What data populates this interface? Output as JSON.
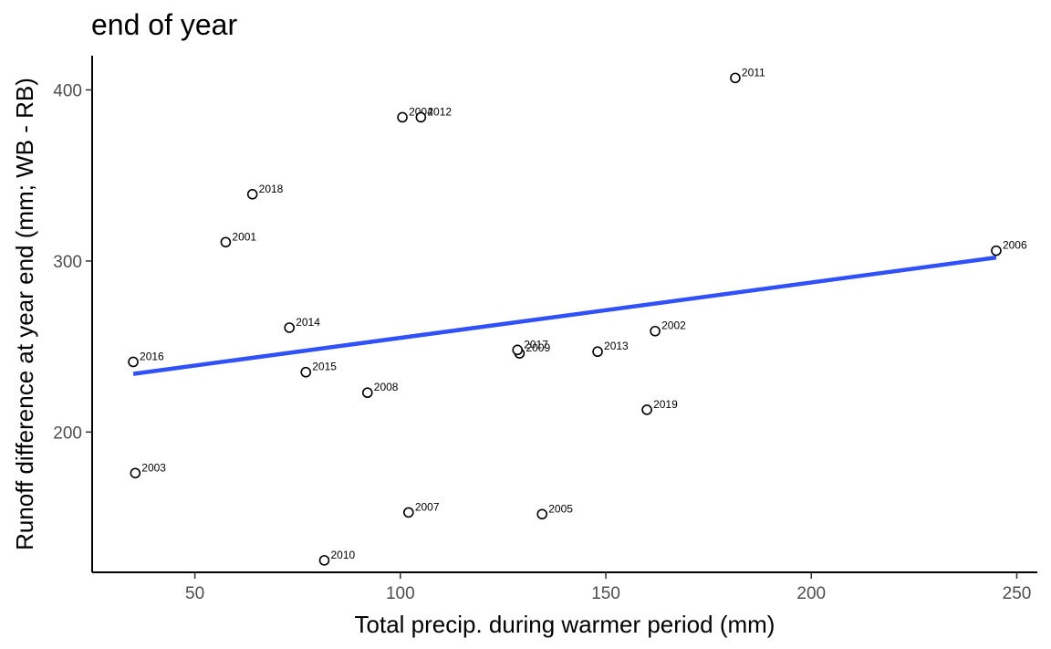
{
  "chart_data": {
    "type": "scatter",
    "title": "end of year",
    "xlabel": "Total precip. during warmer period (mm)",
    "ylabel": "Runoff difference at year end (mm; WB - RB)",
    "xlim": [
      25,
      255
    ],
    "ylim": [
      118,
      420
    ],
    "xticks": [
      50,
      100,
      150,
      200,
      250
    ],
    "yticks": [
      200,
      300,
      400
    ],
    "grid": false,
    "legend": "none",
    "point_color": "#000000",
    "trend_color": "#3050F8",
    "points": [
      {
        "label": "2001",
        "x": 57.5,
        "y": 311
      },
      {
        "label": "2002",
        "x": 162,
        "y": 259
      },
      {
        "label": "2003",
        "x": 35.5,
        "y": 176
      },
      {
        "label": "2004",
        "x": 100.5,
        "y": 384
      },
      {
        "label": "2005",
        "x": 134.5,
        "y": 152
      },
      {
        "label": "2006",
        "x": 245,
        "y": 306
      },
      {
        "label": "2007",
        "x": 102,
        "y": 153
      },
      {
        "label": "2008",
        "x": 92,
        "y": 223
      },
      {
        "label": "2009",
        "x": 129,
        "y": 246
      },
      {
        "label": "2010",
        "x": 81.5,
        "y": 125
      },
      {
        "label": "2011",
        "x": 181.5,
        "y": 407
      },
      {
        "label": "2012",
        "x": 105,
        "y": 384
      },
      {
        "label": "2013",
        "x": 148,
        "y": 247
      },
      {
        "label": "2014",
        "x": 73,
        "y": 261
      },
      {
        "label": "2015",
        "x": 77,
        "y": 235
      },
      {
        "label": "2016",
        "x": 35,
        "y": 241
      },
      {
        "label": "2017",
        "x": 128.5,
        "y": 248
      },
      {
        "label": "2018",
        "x": 64,
        "y": 339
      },
      {
        "label": "2019",
        "x": 160,
        "y": 213
      }
    ],
    "trend_line": {
      "x": [
        35,
        245
      ],
      "y": [
        234,
        302
      ]
    }
  }
}
